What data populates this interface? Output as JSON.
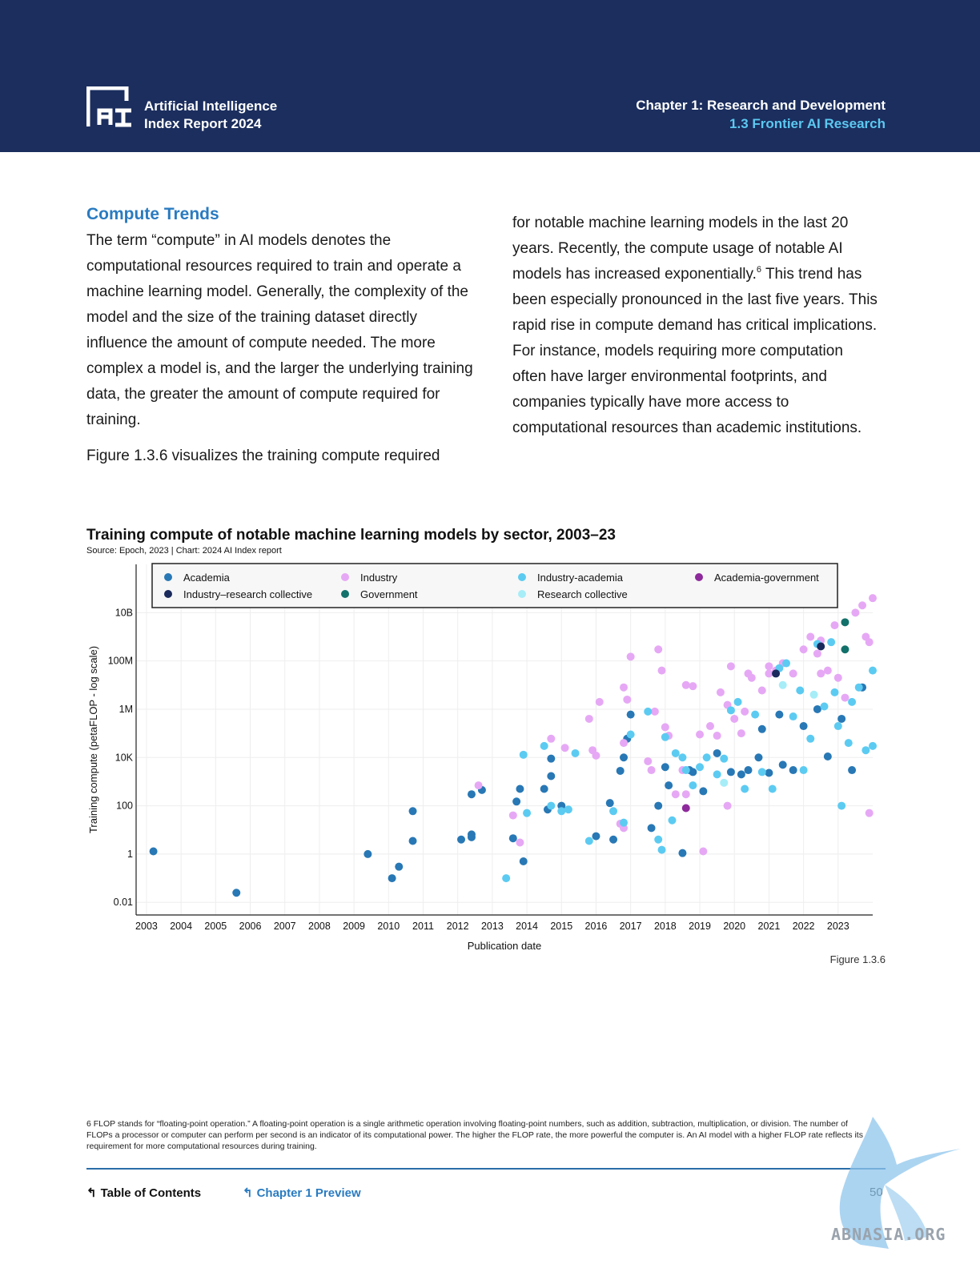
{
  "header": {
    "logo_line1": "Artificial Intelligence",
    "logo_line2": "Index Report 2024",
    "chapter": "Chapter 1: Research and Development",
    "subsection": "1.3 Frontier AI Research",
    "bg_color": "#1b2e5e",
    "accent_color": "#5cc8f0"
  },
  "section": {
    "title": "Compute Trends",
    "left_p1": "The term “compute” in AI models denotes the computational resources required to train and operate a machine learning model. Generally, the complexity of the model and the size of the training dataset directly influence the amount of compute needed. The more complex a model is, and the larger the underlying training data, the greater the amount of compute required for training.",
    "left_p2": "Figure 1.3.6 visualizes the training compute required",
    "right_p1a": "for notable machine learning models in the last 20 years. Recently, the compute usage of notable AI models has increased exponentially.",
    "right_sup": "6",
    "right_p1b": " This trend has been especially pronounced in the last five years. This rapid rise in compute demand has critical implications. For instance, models requiring more computation often have larger environmental footprints, and companies typically have more access to computational resources than academic institutions."
  },
  "figure": {
    "label": "Figure 1.3.6"
  },
  "footnote": "6 FLOP stands for “floating-point operation.” A floating-point operation is a single arithmetic operation involving floating-point numbers, such as addition, subtraction, multiplication, or division. The number of FLOPs a processor or computer can perform per second is an indicator of its computational power. The higher the FLOP rate, the more powerful the computer is. An AI model with a higher FLOP rate reflects its requirement for more computational resources during training.",
  "nav": {
    "toc": "Table of Contents",
    "chapter_preview": "Chapter 1 Preview",
    "page_number": "50"
  },
  "watermark": "ABNASIA.ORG",
  "chart_data": {
    "type": "scatter",
    "title": "Training compute of notable machine learning models by sector, 2003–23",
    "subtitle": "Source: Epoch, 2023 | Chart: 2024 AI Index report",
    "xlabel": "Publication date",
    "ylabel": "Training compute (petaFLOP - log scale)",
    "y_scale": "log",
    "xlim": [
      2002.7,
      2024.0
    ],
    "ylim": [
      0.003,
      1000000000000
    ],
    "x_ticks": [
      2003,
      2004,
      2005,
      2006,
      2007,
      2008,
      2009,
      2010,
      2011,
      2012,
      2013,
      2014,
      2015,
      2016,
      2017,
      2018,
      2019,
      2020,
      2021,
      2022,
      2023
    ],
    "y_ticks": [
      {
        "value": 0.01,
        "label": "0.01"
      },
      {
        "value": 1,
        "label": "1"
      },
      {
        "value": 100,
        "label": "100"
      },
      {
        "value": 10000,
        "label": "10K"
      },
      {
        "value": 1000000,
        "label": "1M"
      },
      {
        "value": 100000000,
        "label": "100M"
      },
      {
        "value": 10000000000,
        "label": "10B"
      }
    ],
    "grid": true,
    "legend_position": "top",
    "series": [
      {
        "name": "Academia",
        "color": "#2878b5",
        "points": [
          [
            2003.2,
            1.3
          ],
          [
            2005.6,
            0.025
          ],
          [
            2009.4,
            1.0
          ],
          [
            2010.1,
            0.1
          ],
          [
            2010.3,
            0.3
          ],
          [
            2010.7,
            60
          ],
          [
            2010.7,
            3.5
          ],
          [
            2012.1,
            4
          ],
          [
            2012.4,
            5
          ],
          [
            2012.4,
            6.5
          ],
          [
            2012.4,
            300
          ],
          [
            2012.7,
            450
          ],
          [
            2013.6,
            4.5
          ],
          [
            2013.7,
            150
          ],
          [
            2013.8,
            500
          ],
          [
            2013.9,
            0.5
          ],
          [
            2014.5,
            500
          ],
          [
            2014.6,
            70
          ],
          [
            2014.7,
            1700
          ],
          [
            2014.7,
            9000
          ],
          [
            2015.0,
            100
          ],
          [
            2016.0,
            5.5
          ],
          [
            2016.4,
            130
          ],
          [
            2016.5,
            4
          ],
          [
            2016.7,
            2800
          ],
          [
            2016.8,
            10000
          ],
          [
            2016.9,
            60000
          ],
          [
            2017.0,
            600000
          ],
          [
            2017.6,
            12
          ],
          [
            2017.8,
            100
          ],
          [
            2018.0,
            4000
          ],
          [
            2018.1,
            700
          ],
          [
            2018.5,
            1.1
          ],
          [
            2018.7,
            3000
          ],
          [
            2018.8,
            2500
          ],
          [
            2019.1,
            400
          ],
          [
            2019.5,
            15000
          ],
          [
            2019.9,
            2500
          ],
          [
            2020.2,
            2000
          ],
          [
            2020.4,
            3000
          ],
          [
            2020.7,
            10000
          ],
          [
            2020.8,
            150000
          ],
          [
            2021.0,
            2300
          ],
          [
            2021.3,
            600000
          ],
          [
            2021.4,
            5000
          ],
          [
            2021.7,
            3000
          ],
          [
            2022.0,
            200000
          ],
          [
            2022.4,
            1000000
          ],
          [
            2022.7,
            11000
          ],
          [
            2023.1,
            400000
          ],
          [
            2023.4,
            3000
          ],
          [
            2023.7,
            8000000
          ]
        ]
      },
      {
        "name": "Industry",
        "color": "#e6a8f5",
        "points": [
          [
            2012.6,
            700
          ],
          [
            2013.6,
            40
          ],
          [
            2013.8,
            3
          ],
          [
            2014.7,
            60000
          ],
          [
            2015.1,
            25000
          ],
          [
            2015.8,
            400000
          ],
          [
            2015.9,
            20000
          ],
          [
            2016.0,
            12000
          ],
          [
            2016.1,
            2000000
          ],
          [
            2016.7,
            18
          ],
          [
            2016.8,
            12
          ],
          [
            2016.8,
            40000
          ],
          [
            2016.8,
            8000000
          ],
          [
            2016.9,
            2500000
          ],
          [
            2017.0,
            150000000
          ],
          [
            2017.5,
            7000
          ],
          [
            2017.6,
            3000
          ],
          [
            2017.7,
            800000
          ],
          [
            2017.8,
            300000000
          ],
          [
            2017.9,
            40000000
          ],
          [
            2018.0,
            180000
          ],
          [
            2018.1,
            80000
          ],
          [
            2018.3,
            300
          ],
          [
            2018.5,
            3000
          ],
          [
            2018.6,
            300
          ],
          [
            2018.6,
            10000000
          ],
          [
            2018.8,
            9000000
          ],
          [
            2019.0,
            90000
          ],
          [
            2019.1,
            1.3
          ],
          [
            2019.3,
            200000
          ],
          [
            2019.5,
            80000
          ],
          [
            2019.6,
            5000000
          ],
          [
            2019.8,
            100
          ],
          [
            2019.8,
            1500000
          ],
          [
            2019.9,
            60000000
          ],
          [
            2020.0,
            400000
          ],
          [
            2020.2,
            100000
          ],
          [
            2020.3,
            800000
          ],
          [
            2020.5,
            20000000
          ],
          [
            2020.8,
            6000000
          ],
          [
            2021.0,
            60000000
          ],
          [
            2021.2,
            40000000
          ],
          [
            2021.4,
            80000000
          ],
          [
            2021.7,
            30000000
          ],
          [
            2022.0,
            300000000
          ],
          [
            2022.2,
            1000000000
          ],
          [
            2022.4,
            200000000
          ],
          [
            2022.5,
            30000000
          ],
          [
            2022.7,
            40000000
          ],
          [
            2022.9,
            3000000000
          ],
          [
            2023.0,
            20000000
          ],
          [
            2023.2,
            3000000
          ],
          [
            2023.5,
            10000000000
          ],
          [
            2023.7,
            20000000000
          ],
          [
            2023.8,
            1000000000
          ],
          [
            2023.9,
            50
          ],
          [
            2024.0,
            40000000000
          ],
          [
            2023.9,
            600000000
          ],
          [
            2022.5,
            700000000
          ],
          [
            2021.0,
            30000000
          ],
          [
            2020.4,
            30000000
          ]
        ]
      },
      {
        "name": "Industry-academia",
        "color": "#5ccbf2",
        "points": [
          [
            2013.4,
            0.1
          ],
          [
            2013.9,
            13000
          ],
          [
            2014.0,
            50
          ],
          [
            2014.5,
            30000
          ],
          [
            2014.7,
            100
          ],
          [
            2015.0,
            60
          ],
          [
            2015.2,
            70
          ],
          [
            2015.4,
            15000
          ],
          [
            2015.8,
            3.5
          ],
          [
            2016.5,
            60
          ],
          [
            2016.8,
            20
          ],
          [
            2017.0,
            90000
          ],
          [
            2017.5,
            800000
          ],
          [
            2017.8,
            4
          ],
          [
            2017.9,
            1.5
          ],
          [
            2018.0,
            70000
          ],
          [
            2018.2,
            25
          ],
          [
            2018.3,
            15000
          ],
          [
            2018.5,
            10000
          ],
          [
            2018.6,
            3000
          ],
          [
            2018.8,
            700
          ],
          [
            2019.0,
            4000
          ],
          [
            2019.2,
            10000
          ],
          [
            2019.5,
            2000
          ],
          [
            2019.7,
            9000
          ],
          [
            2019.9,
            900000
          ],
          [
            2020.1,
            2000000
          ],
          [
            2020.3,
            500
          ],
          [
            2020.6,
            600000
          ],
          [
            2020.8,
            2500
          ],
          [
            2021.1,
            500
          ],
          [
            2021.3,
            50000000
          ],
          [
            2021.5,
            80000000
          ],
          [
            2021.7,
            500000
          ],
          [
            2021.9,
            6000000
          ],
          [
            2022.0,
            3000
          ],
          [
            2022.2,
            60000
          ],
          [
            2022.4,
            500000000
          ],
          [
            2022.6,
            1300000
          ],
          [
            2022.8,
            600000000
          ],
          [
            2022.9,
            5000000
          ],
          [
            2023.1,
            100
          ],
          [
            2023.3,
            40000
          ],
          [
            2023.4,
            2000000
          ],
          [
            2023.6,
            8000000
          ],
          [
            2023.8,
            20000
          ],
          [
            2024.0,
            30000
          ],
          [
            2024.0,
            40000000
          ],
          [
            2023.0,
            200000
          ]
        ]
      },
      {
        "name": "Academia-government",
        "color": "#8e2a9c",
        "points": [
          [
            2018.6,
            80
          ]
        ]
      },
      {
        "name": "Industry–research collective",
        "color": "#1b2a5c",
        "points": [
          [
            2022.5,
            400000000
          ],
          [
            2021.2,
            30000000
          ]
        ]
      },
      {
        "name": "Government",
        "color": "#12716a",
        "points": [
          [
            2023.2,
            4000000000
          ],
          [
            2023.2,
            300000000
          ]
        ]
      },
      {
        "name": "Research collective",
        "color": "#a6edf8",
        "points": [
          [
            2019.7,
            900
          ],
          [
            2021.4,
            10000000
          ],
          [
            2022.3,
            4000000
          ]
        ]
      }
    ],
    "legend": [
      {
        "name": "Academia",
        "color": "#2878b5"
      },
      {
        "name": "Industry",
        "color": "#e6a8f5"
      },
      {
        "name": "Industry-academia",
        "color": "#5ccbf2"
      },
      {
        "name": "Academia-government",
        "color": "#8e2a9c"
      },
      {
        "name": "Industry–research collective",
        "color": "#1b2a5c"
      },
      {
        "name": "Government",
        "color": "#12716a"
      },
      {
        "name": "Research collective",
        "color": "#a6edf8"
      }
    ]
  }
}
